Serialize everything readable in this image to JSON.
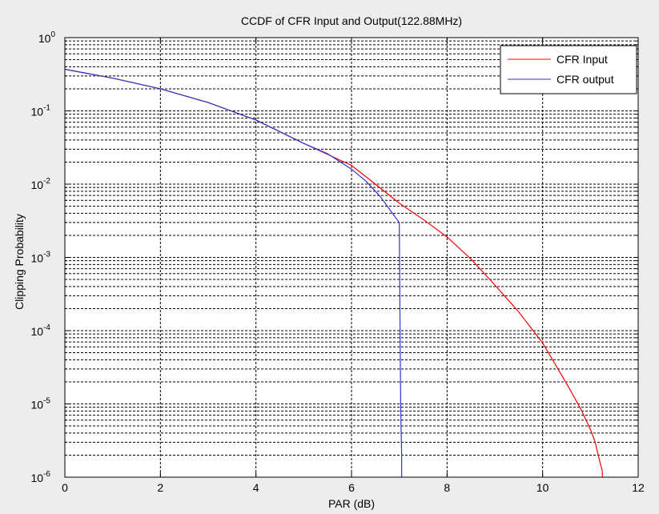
{
  "chart_data": {
    "type": "line",
    "title": "CCDF of CFR Input and Output(122.88MHz)",
    "xlabel": "PAR (dB)",
    "ylabel": "Clipping Probability",
    "xlim": [
      0,
      12
    ],
    "ylim": [
      1e-06,
      1
    ],
    "yscale": "log",
    "grid": true,
    "legend_position": "top-right",
    "xticks": [
      0,
      2,
      4,
      6,
      8,
      10,
      12
    ],
    "xtick_labels": [
      "0",
      "2",
      "4",
      "6",
      "8",
      "10",
      "12"
    ],
    "yticks": [
      {
        "value": 1,
        "base": "10",
        "exp": "0"
      },
      {
        "value": 0.1,
        "base": "10",
        "exp": "-1"
      },
      {
        "value": 0.01,
        "base": "10",
        "exp": "-2"
      },
      {
        "value": 0.001,
        "base": "10",
        "exp": "-3"
      },
      {
        "value": 0.0001,
        "base": "10",
        "exp": "-4"
      },
      {
        "value": 1e-05,
        "base": "10",
        "exp": "-5"
      },
      {
        "value": 1e-06,
        "base": "10",
        "exp": "-6"
      }
    ],
    "series": [
      {
        "name": "CFR Input",
        "color": "#ff0000",
        "x": [
          0,
          1,
          2,
          3,
          4,
          5,
          6,
          6.5,
          7,
          7.5,
          8,
          8.5,
          9,
          9.5,
          10,
          10.5,
          10.8,
          11,
          11.1,
          11.2,
          11.25,
          11.25
        ],
        "y": [
          0.37,
          0.28,
          0.2,
          0.13,
          0.075,
          0.036,
          0.018,
          0.01,
          0.0055,
          0.0033,
          0.0019,
          0.00095,
          0.00042,
          0.00018,
          6.8e-05,
          1.9e-05,
          8.5e-06,
          4.5e-06,
          3e-06,
          1.6e-06,
          1.2e-06,
          1e-06
        ]
      },
      {
        "name": "CFR output",
        "color": "#3333cc",
        "x": [
          0,
          1,
          2,
          3,
          4,
          5,
          5.5,
          6,
          6.3,
          6.6,
          6.8,
          6.95,
          7.0,
          7.02,
          7.03,
          7.05,
          7.05
        ],
        "y": [
          0.37,
          0.28,
          0.2,
          0.13,
          0.075,
          0.036,
          0.026,
          0.016,
          0.011,
          0.0068,
          0.0045,
          0.0033,
          0.003,
          5e-05,
          8e-06,
          2e-06,
          1e-06
        ]
      }
    ]
  }
}
